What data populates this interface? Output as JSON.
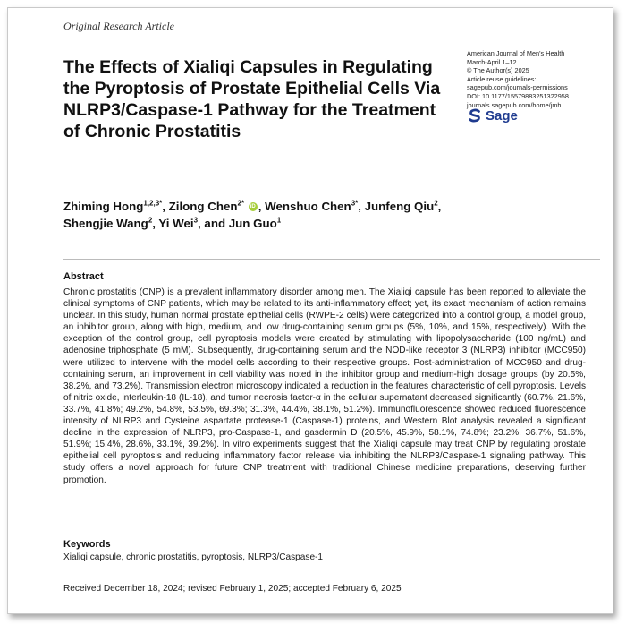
{
  "article_type": "Original Research Article",
  "title": "The Effects of Xialiqi Capsules in Regulating the Pyroptosis of Prostate Epithelial Cells Via NLRP3/Caspase-1 Pathway for the Treatment of Chronic Prostatitis",
  "journal_info": {
    "journal": "American Journal of Men's Health",
    "issue": "March-April 1–12",
    "copyright": "© The Author(s) 2025",
    "reuse": "Article reuse guidelines:",
    "permissions": "sagepub.com/journals-permissions",
    "doi": "DOI: 10.1177/15579883251322958",
    "homepage": "journals.sagepub.com/home/jmh"
  },
  "publisher_logo": "Sage",
  "authors": [
    {
      "name": "Zhiming Hong",
      "sup": "1,2,3*",
      "sep": ", "
    },
    {
      "name": "Zilong Chen",
      "sup": "2*",
      "orcid": true,
      "sep": ", "
    },
    {
      "name": "Wenshuo Chen",
      "sup": "3*",
      "sep": ", "
    },
    {
      "name": "Junfeng Qiu",
      "sup": "2",
      "sep": ","
    },
    {
      "name": "Shengjie Wang",
      "sup": "2",
      "sep": ", "
    },
    {
      "name": "Yi Wei",
      "sup": "3",
      "sep": ", and "
    },
    {
      "name": "Jun Guo",
      "sup": "1",
      "sep": ""
    }
  ],
  "orcid_label": "iD",
  "abstract": {
    "heading": "Abstract",
    "text": "Chronic prostatitis (CNP) is a prevalent inflammatory disorder among men. The Xialiqi capsule has been reported to alleviate the clinical symptoms of CNP patients, which may be related to its anti-inflammatory effect; yet, its exact mechanism of action remains unclear. In this study, human normal prostate epithelial cells (RWPE-2 cells) were categorized into a control group, a model group, an inhibitor group, along with high, medium, and low drug-containing serum groups (5%, 10%, and 15%, respectively). With the exception of the control group, cell pyroptosis models were created by stimulating with lipopolysaccharide (100 ng/mL) and adenosine triphosphate (5 mM). Subsequently, drug-containing serum and the NOD-like receptor 3 (NLRP3) inhibitor (MCC950) were utilized to intervene with the model cells according to their respective groups. Post-administration of MCC950 and drug-containing serum, an improvement in cell viability was noted in the inhibitor group and medium-high dosage groups (by 20.5%, 38.2%, and 73.2%). Transmission electron microscopy indicated a reduction in the features characteristic of cell pyroptosis. Levels of nitric oxide, interleukin-18 (IL-18), and tumor necrosis factor-α in the cellular supernatant decreased significantly (60.7%, 21.6%, 33.7%, 41.8%; 49.2%, 54.8%, 53.5%, 69.3%; 31.3%, 44.4%, 38.1%, 51.2%). Immunofluorescence showed reduced fluorescence intensity of NLRP3 and Cysteine aspartate protease-1 (Caspase-1) proteins, and Western Blot analysis revealed a significant decline in the expression of NLRP3, pro-Caspase-1, and gasdermin D (20.5%, 45.9%, 58.1%, 74.8%; 23.2%, 36.7%, 51.6%, 51.9%; 15.4%, 28.6%, 33.1%, 39.2%). In vitro experiments suggest that the Xialiqi capsule may treat CNP by regulating prostate epithelial cell pyroptosis and reducing inflammatory factor release via inhibiting the NLRP3/Caspase-1 signaling pathway. This study offers a novel approach for future CNP treatment with traditional Chinese medicine preparations, deserving further promotion."
  },
  "keywords": {
    "heading": "Keywords",
    "text": "Xialiqi capsule, chronic prostatitis, pyroptosis, NLRP3/Caspase-1"
  },
  "dates": "Received December 18, 2024; revised February 1, 2025; accepted February 6, 2025",
  "colors": {
    "sage_blue": "#1f3b8f",
    "orcid_green": "#a6ce39"
  }
}
